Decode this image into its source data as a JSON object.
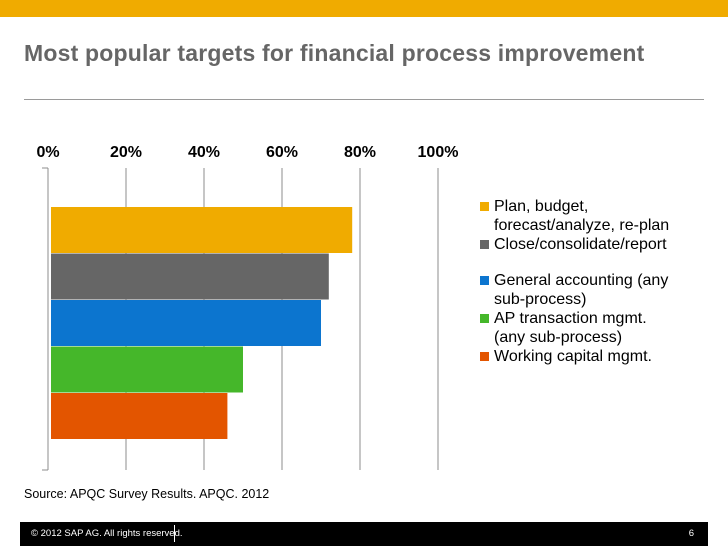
{
  "title": "Most popular targets for financial process improvement",
  "chart_data": {
    "type": "bar",
    "orientation": "horizontal",
    "x_ticks": [
      "0%",
      "20%",
      "40%",
      "60%",
      "80%",
      "100%"
    ],
    "xlim": [
      0,
      100
    ],
    "grid": true,
    "legend_position": "right",
    "series": [
      {
        "name": "Plan, budget, forecast/analyze, re-plan",
        "legend_lines": [
          "Plan, budget,",
          "forecast/analyze, re-plan"
        ],
        "value": 78,
        "color": "#F0AB00"
      },
      {
        "name": "Close/consolidate/report",
        "legend_lines": [
          "Close/consolidate/report"
        ],
        "value": 72,
        "color": "#666666"
      },
      {
        "name": "General accounting (any sub-process)",
        "legend_lines": [
          "General accounting (any",
          "sub-process)"
        ],
        "value": 70,
        "color": "#0C75CF"
      },
      {
        "name": "AP transaction mgmt. (any sub-process)",
        "legend_lines": [
          "AP transaction mgmt.",
          "(any sub-process)"
        ],
        "value": 50,
        "color": "#45B72A"
      },
      {
        "name": "Working capital mgmt.",
        "legend_lines": [
          "Working capital mgmt."
        ],
        "value": 46,
        "color": "#E35500"
      }
    ]
  },
  "source": "Source: APQC Survey Results. APQC. 2012",
  "footer": {
    "copyright": "© 2012 SAP AG. All rights reserved.",
    "page_number": "6"
  },
  "colors": {
    "accent": "#F0AB00",
    "title": "#666666",
    "grid": "#8c8c8c"
  }
}
